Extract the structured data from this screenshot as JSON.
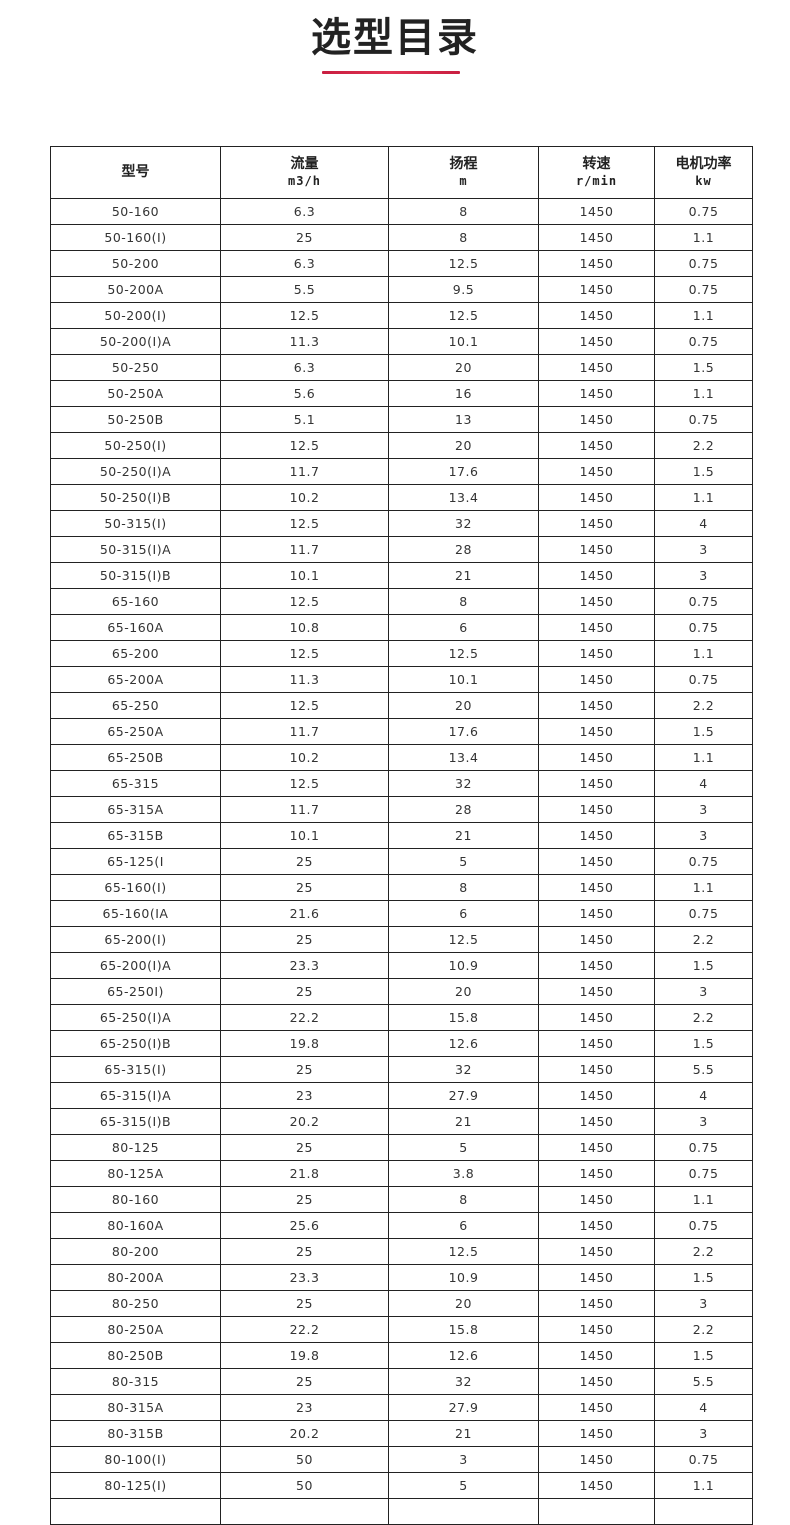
{
  "title": "选型目录",
  "colors": {
    "accent": "#d0204a",
    "border": "#222222"
  },
  "table": {
    "headers": [
      {
        "label": "型号",
        "unit": ""
      },
      {
        "label": "流量",
        "unit": "m3/h"
      },
      {
        "label": "扬程",
        "unit": "m"
      },
      {
        "label": "转速",
        "unit": "r/min"
      },
      {
        "label": "电机功率",
        "unit": "kw"
      }
    ],
    "rows": [
      [
        "50-160",
        "6.3",
        "8",
        "1450",
        "0.75"
      ],
      [
        "50-160(I)",
        "25",
        "8",
        "1450",
        "1.1"
      ],
      [
        "50-200",
        "6.3",
        "12.5",
        "1450",
        "0.75"
      ],
      [
        "50-200A",
        "5.5",
        "9.5",
        "1450",
        "0.75"
      ],
      [
        "50-200(I)",
        "12.5",
        "12.5",
        "1450",
        "1.1"
      ],
      [
        "50-200(I)A",
        "11.3",
        "10.1",
        "1450",
        "0.75"
      ],
      [
        "50-250",
        "6.3",
        "20",
        "1450",
        "1.5"
      ],
      [
        "50-250A",
        "5.6",
        "16",
        "1450",
        "1.1"
      ],
      [
        "50-250B",
        "5.1",
        "13",
        "1450",
        "0.75"
      ],
      [
        "50-250(I)",
        "12.5",
        "20",
        "1450",
        "2.2"
      ],
      [
        "50-250(I)A",
        "11.7",
        "17.6",
        "1450",
        "1.5"
      ],
      [
        "50-250(I)B",
        "10.2",
        "13.4",
        "1450",
        "1.1"
      ],
      [
        "50-315(I)",
        "12.5",
        "32",
        "1450",
        "4"
      ],
      [
        "50-315(I)A",
        "11.7",
        "28",
        "1450",
        "3"
      ],
      [
        "50-315(I)B",
        "10.1",
        "21",
        "1450",
        "3"
      ],
      [
        "65-160",
        "12.5",
        "8",
        "1450",
        "0.75"
      ],
      [
        "65-160A",
        "10.8",
        "6",
        "1450",
        "0.75"
      ],
      [
        "65-200",
        "12.5",
        "12.5",
        "1450",
        "1.1"
      ],
      [
        "65-200A",
        "11.3",
        "10.1",
        "1450",
        "0.75"
      ],
      [
        "65-250",
        "12.5",
        "20",
        "1450",
        "2.2"
      ],
      [
        "65-250A",
        "11.7",
        "17.6",
        "1450",
        "1.5"
      ],
      [
        "65-250B",
        "10.2",
        "13.4",
        "1450",
        "1.1"
      ],
      [
        "65-315",
        "12.5",
        "32",
        "1450",
        "4"
      ],
      [
        "65-315A",
        "11.7",
        "28",
        "1450",
        "3"
      ],
      [
        "65-315B",
        "10.1",
        "21",
        "1450",
        "3"
      ],
      [
        "65-125(I",
        "25",
        "5",
        "1450",
        "0.75"
      ],
      [
        "65-160(I)",
        "25",
        "8",
        "1450",
        "1.1"
      ],
      [
        "65-160(IA",
        "21.6",
        "6",
        "1450",
        "0.75"
      ],
      [
        "65-200(I)",
        "25",
        "12.5",
        "1450",
        "2.2"
      ],
      [
        "65-200(I)A",
        "23.3",
        "10.9",
        "1450",
        "1.5"
      ],
      [
        "65-250I)",
        "25",
        "20",
        "1450",
        "3"
      ],
      [
        "65-250(I)A",
        "22.2",
        "15.8",
        "1450",
        "2.2"
      ],
      [
        "65-250(I)B",
        "19.8",
        "12.6",
        "1450",
        "1.5"
      ],
      [
        "65-315(I)",
        "25",
        "32",
        "1450",
        "5.5"
      ],
      [
        "65-315(I)A",
        "23",
        "27.9",
        "1450",
        "4"
      ],
      [
        "65-315(I)B",
        "20.2",
        "21",
        "1450",
        "3"
      ],
      [
        "80-125",
        "25",
        "5",
        "1450",
        "0.75"
      ],
      [
        "80-125A",
        "21.8",
        "3.8",
        "1450",
        "0.75"
      ],
      [
        "80-160",
        "25",
        "8",
        "1450",
        "1.1"
      ],
      [
        "80-160A",
        "25.6",
        "6",
        "1450",
        "0.75"
      ],
      [
        "80-200",
        "25",
        "12.5",
        "1450",
        "2.2"
      ],
      [
        "80-200A",
        "23.3",
        "10.9",
        "1450",
        "1.5"
      ],
      [
        "80-250",
        "25",
        "20",
        "1450",
        "3"
      ],
      [
        "80-250A",
        "22.2",
        "15.8",
        "1450",
        "2.2"
      ],
      [
        "80-250B",
        "19.8",
        "12.6",
        "1450",
        "1.5"
      ],
      [
        "80-315",
        "25",
        "32",
        "1450",
        "5.5"
      ],
      [
        "80-315A",
        "23",
        "27.9",
        "1450",
        "4"
      ],
      [
        "80-315B",
        "20.2",
        "21",
        "1450",
        "3"
      ],
      [
        "80-100(I)",
        "50",
        "3",
        "1450",
        "0.75"
      ],
      [
        "80-125(I)",
        "50",
        "5",
        "1450",
        "1.1"
      ],
      [
        "",
        "",
        "",
        "",
        ""
      ]
    ]
  }
}
